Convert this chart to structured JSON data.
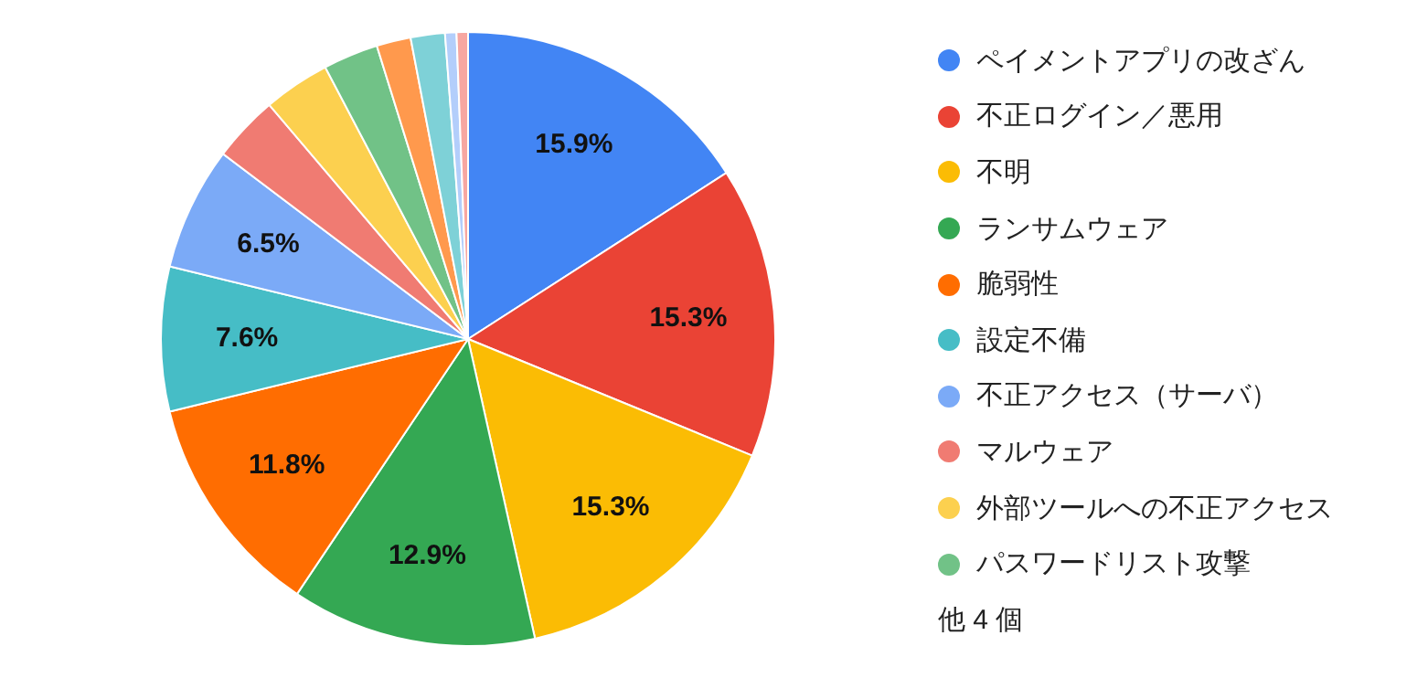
{
  "chart_data": {
    "type": "pie",
    "categories": [
      "ペイメントアプリの改ざん",
      "不正ログイン／悪用",
      "不明",
      "ランサムウェア",
      "脆弱性",
      "設定不備",
      "不正アクセス（サーバ）",
      "マルウェア",
      "外部ツールへの不正アクセス",
      "パスワードリスト攻撃",
      null,
      null,
      null,
      null
    ],
    "values": [
      15.9,
      15.3,
      15.3,
      12.9,
      11.8,
      7.6,
      6.5,
      3.5,
      3.5,
      2.9,
      1.8,
      1.8,
      0.6,
      0.6
    ],
    "colors": [
      "#4285f4",
      "#ea4335",
      "#fbbc04",
      "#34a853",
      "#ff6d01",
      "#46bdc6",
      "#7baaf7",
      "#f07b72",
      "#fcd04f",
      "#71c287",
      "#ff994d",
      "#7ed1d7",
      "#b3cefb",
      "#f7a7a1"
    ],
    "value_labels": [
      "15.9%",
      "15.3%",
      "15.3%",
      "12.9%",
      "11.8%",
      "7.6%",
      "6.5%",
      null,
      null,
      null,
      null,
      null,
      null,
      null
    ],
    "legend": "right",
    "annotations": [
      "他 4 個"
    ]
  }
}
